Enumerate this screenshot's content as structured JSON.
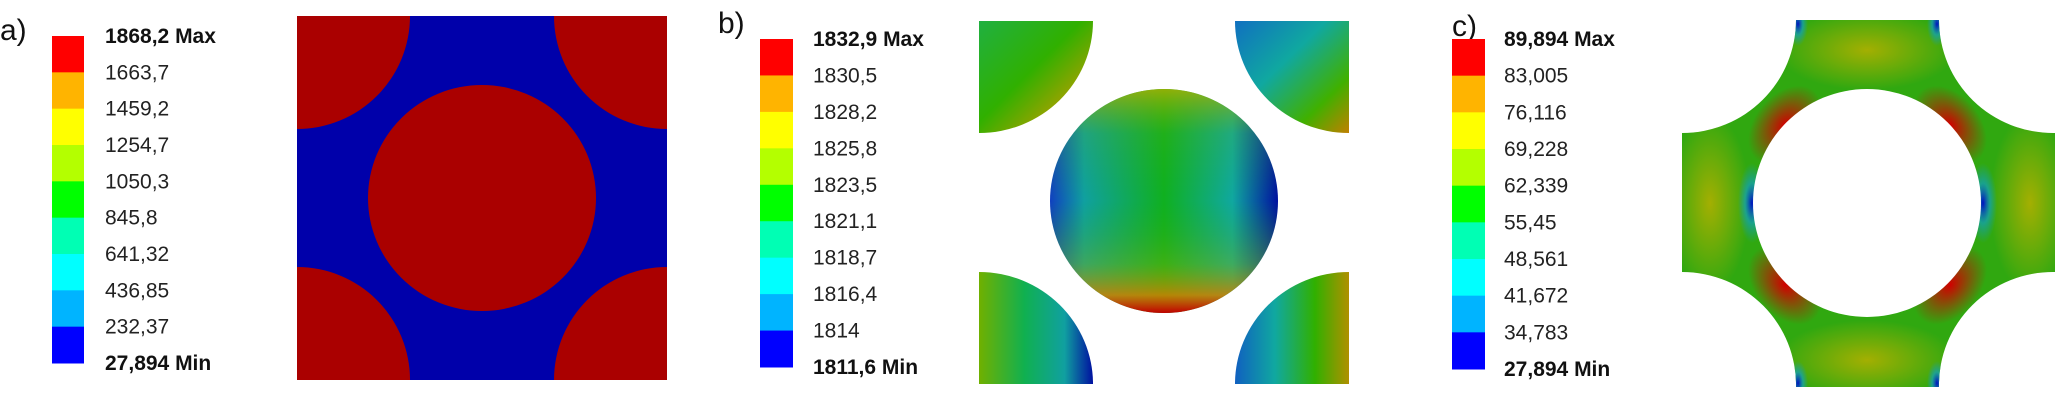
{
  "legend_colors": [
    "#ff0000",
    "#ffb400",
    "#ffff00",
    "#b4ff00",
    "#00ff00",
    "#00ffb4",
    "#00ffff",
    "#00b4ff",
    "#0000ff"
  ],
  "panels": [
    {
      "label": "a)",
      "max_label": "1868,2 Max",
      "min_label": "27,894 Min",
      "levels": [
        "1663,7",
        "1459,2",
        "1254,7",
        "1050,3",
        "845,8",
        "641,32",
        "436,85",
        "232,37"
      ],
      "fill_colors": {
        "inclusion": "#aa0000",
        "matrix": "#0000aa"
      }
    },
    {
      "label": "b)",
      "max_label": "1832,9 Max",
      "min_label": "1811,6 Min",
      "levels": [
        "1830,5",
        "1828,2",
        "1825,8",
        "1823,5",
        "1821,1",
        "1818,7",
        "1816,4",
        "1814"
      ]
    },
    {
      "label": "c)",
      "max_label": "89,894 Max",
      "min_label": "27,894 Min",
      "levels": [
        "83,005",
        "76,116",
        "69,228",
        "62,339",
        "55,45",
        "48,561",
        "41,672",
        "34,783"
      ]
    }
  ]
}
